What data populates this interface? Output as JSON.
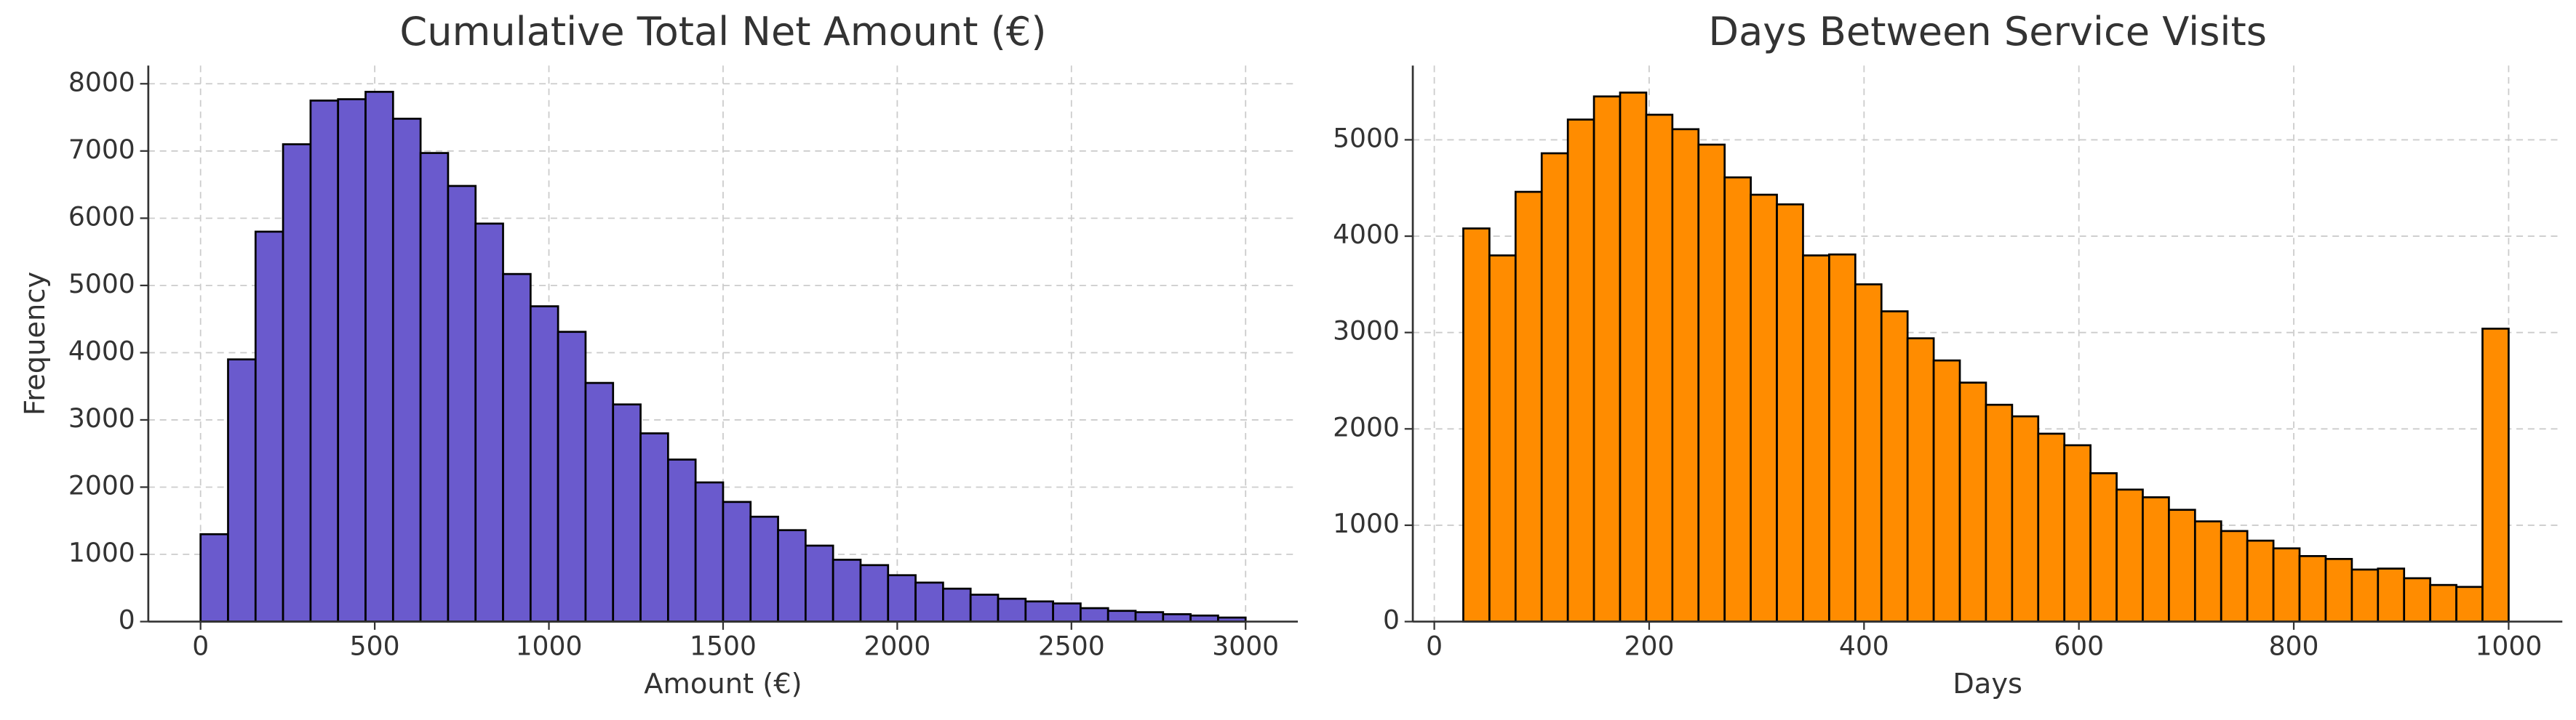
{
  "chart_data": [
    {
      "type": "histogram",
      "title": "Cumulative Total Net Amount (€)",
      "xlabel": "Amount (€)",
      "ylabel": "Frequency",
      "color": "#6a5acd",
      "edgecolor": "#000000",
      "grid": true,
      "bins": [
        0,
        78.95,
        157.89,
        236.84,
        315.79,
        394.74,
        473.68,
        552.63,
        631.58,
        710.53,
        789.47,
        868.42,
        947.37,
        1026.32,
        1105.26,
        1184.21,
        1263.16,
        1342.11,
        1421.05,
        1500,
        1578.95,
        1657.89,
        1736.84,
        1815.79,
        1894.74,
        1973.68,
        2052.63,
        2131.58,
        2210.53,
        2289.47,
        2368.42,
        2447.37,
        2526.32,
        2605.26,
        2684.21,
        2763.16,
        2842.11,
        2921.05,
        3000
      ],
      "values": [
        1300,
        3900,
        5800,
        7100,
        7750,
        7770,
        7880,
        7480,
        6970,
        6480,
        5920,
        5170,
        4690,
        4310,
        3550,
        3230,
        2800,
        2410,
        2070,
        1780,
        1560,
        1360,
        1130,
        920,
        840,
        690,
        580,
        490,
        400,
        340,
        300,
        270,
        200,
        160,
        140,
        110,
        90,
        60
      ],
      "xlim": [
        -150,
        3150
      ],
      "ylim": [
        0,
        8270
      ],
      "xticks": [
        0,
        500,
        1000,
        1500,
        2000,
        2500,
        3000
      ],
      "yticks": [
        0,
        1000,
        2000,
        3000,
        4000,
        5000,
        6000,
        7000,
        8000
      ]
    },
    {
      "type": "histogram",
      "title": "Days Between Service Visits",
      "xlabel": "Days",
      "color": "#ff8c00",
      "edgecolor": "#000000",
      "grid": true,
      "bins": [
        27,
        51.325,
        75.65,
        99.975,
        124.3,
        148.625,
        172.95,
        197.275,
        221.6,
        245.925,
        270.25,
        294.575,
        318.9,
        343.225,
        367.55,
        391.875,
        416.2,
        440.525,
        464.85,
        489.175,
        513.5,
        537.825,
        562.15,
        586.475,
        610.8,
        635.125,
        659.45,
        683.775,
        708.1,
        732.425,
        756.75,
        781.075,
        805.4,
        829.725,
        854.05,
        878.375,
        902.7,
        927.025,
        951.35,
        975.675,
        1000
      ],
      "values": [
        4080,
        3800,
        4460,
        4860,
        5210,
        5450,
        5490,
        5260,
        5110,
        4950,
        4610,
        4430,
        4330,
        3800,
        3810,
        3500,
        3220,
        2940,
        2710,
        2480,
        2250,
        2130,
        1950,
        1830,
        1540,
        1370,
        1290,
        1160,
        1040,
        940,
        840,
        760,
        680,
        650,
        540,
        550,
        450,
        380,
        360,
        3040
      ],
      "xlim": [
        -20,
        1050
      ],
      "ylim": [
        0,
        5770
      ],
      "xticks": [
        0,
        200,
        400,
        600,
        800,
        1000
      ],
      "yticks": [
        0,
        1000,
        2000,
        3000,
        4000,
        5000
      ]
    }
  ]
}
